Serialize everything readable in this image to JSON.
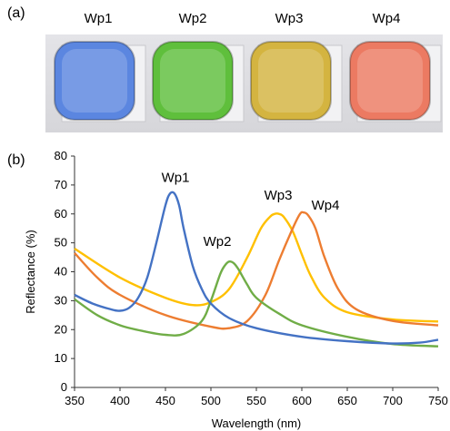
{
  "panels": {
    "a_label": "(a)",
    "b_label": "(b)"
  },
  "samples": [
    {
      "name": "Wp1",
      "color": "#5b86e0"
    },
    {
      "name": "Wp2",
      "color": "#5fbf3c"
    },
    {
      "name": "Wp3",
      "color": "#d4b440"
    },
    {
      "name": "Wp4",
      "color": "#ec7a62"
    }
  ],
  "chart_data": {
    "type": "line",
    "title": "",
    "xlabel": "Wavelength (nm)",
    "ylabel": "Reflectance (%)",
    "xlim": [
      350,
      750
    ],
    "ylim": [
      0,
      80
    ],
    "xticks": [
      350,
      400,
      450,
      500,
      550,
      600,
      650,
      700,
      750
    ],
    "yticks": [
      0,
      10,
      20,
      30,
      40,
      50,
      60,
      70,
      80
    ],
    "grid": false,
    "series": [
      {
        "name": "Wp1",
        "color": "#4472c4",
        "x": [
          350,
          370,
          390,
          400,
          410,
          420,
          430,
          440,
          450,
          455,
          460,
          465,
          470,
          480,
          490,
          500,
          520,
          550,
          600,
          650,
          700,
          730,
          750
        ],
        "y": [
          32,
          29,
          27,
          26.5,
          27.5,
          31,
          38,
          50,
          63,
          67,
          67,
          63,
          55,
          42,
          34,
          29,
          24,
          20.5,
          17.5,
          16,
          15.2,
          15.5,
          16.5
        ]
      },
      {
        "name": "Wp2",
        "color": "#70ad47",
        "x": [
          350,
          375,
          400,
          425,
          450,
          470,
          490,
          500,
          510,
          515,
          520,
          525,
          530,
          540,
          550,
          575,
          600,
          650,
          700,
          750
        ],
        "y": [
          30.5,
          25,
          21.5,
          19.5,
          18.2,
          18.5,
          23,
          30,
          39,
          42,
          43.5,
          43,
          41,
          35.5,
          31,
          25.5,
          21.5,
          17.5,
          15,
          14.2
        ]
      },
      {
        "name": "Wp3",
        "color": "#ffc000",
        "x": [
          350,
          400,
          450,
          480,
          500,
          520,
          540,
          555,
          565,
          570,
          575,
          580,
          590,
          600,
          610,
          625,
          650,
          700,
          750
        ],
        "y": [
          48,
          38,
          31,
          28.5,
          29.5,
          34,
          45,
          55,
          59,
          60,
          60,
          59,
          54,
          46,
          38.5,
          31,
          26,
          23.5,
          22.8
        ]
      },
      {
        "name": "Wp4",
        "color": "#ed7d31",
        "x": [
          350,
          375,
          400,
          450,
          500,
          520,
          540,
          560,
          575,
          590,
          598,
          602,
          607,
          615,
          625,
          640,
          660,
          700,
          750
        ],
        "y": [
          46.5,
          38,
          32,
          25,
          21,
          20.5,
          23,
          32,
          44,
          55,
          60,
          60.5,
          59.5,
          55,
          45,
          34,
          27,
          23,
          21.5
        ]
      }
    ],
    "annotations": [
      {
        "text": "Wp1",
        "x": 461,
        "y": 71
      },
      {
        "text": "Wp2",
        "x": 507,
        "y": 49
      },
      {
        "text": "Wp3",
        "x": 574,
        "y": 65
      },
      {
        "text": "Wp4",
        "x": 626,
        "y": 61.5
      }
    ]
  }
}
